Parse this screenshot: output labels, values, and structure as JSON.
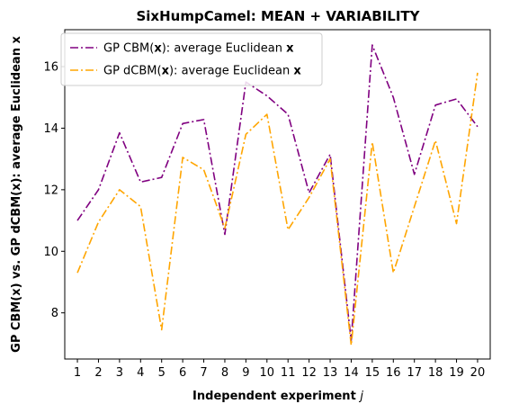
{
  "chart_data": {
    "type": "line",
    "title": "SixHumpCamel: MEAN + VARIABILITY",
    "xlabel": "Independent experiment",
    "xlabel_var": "j",
    "ylabel": "GP CBM(x) vs. GP dCBM(x): average Euclidean x",
    "x": [
      1,
      2,
      3,
      4,
      5,
      6,
      7,
      8,
      9,
      10,
      11,
      12,
      13,
      14,
      15,
      16,
      17,
      18,
      19,
      20
    ],
    "xlim": [
      0.4,
      20.6
    ],
    "ylim": [
      6.5,
      17.2
    ],
    "yticks": [
      8,
      10,
      12,
      14,
      16
    ],
    "grid": false,
    "legend_position": "upper-left",
    "series": [
      {
        "name": "GP CBM(x): average Euclidean x",
        "legend_parts": [
          "GP CBM(",
          "x",
          "): average Euclidean ",
          "x"
        ],
        "color": "#800080",
        "values": [
          11.0,
          12.0,
          13.85,
          12.25,
          12.4,
          14.15,
          14.28,
          10.55,
          15.5,
          15.05,
          14.45,
          11.9,
          13.15,
          7.1,
          16.7,
          15.0,
          12.5,
          14.75,
          14.95,
          14.05
        ]
      },
      {
        "name": "GP dCBM(x): average Euclidean x",
        "legend_parts": [
          "GP dCBM(",
          "x",
          "): average Euclidean ",
          "x"
        ],
        "color": "#ffa500",
        "values": [
          9.3,
          10.95,
          12.0,
          11.45,
          7.45,
          13.05,
          12.65,
          10.75,
          13.8,
          14.45,
          10.7,
          11.75,
          13.0,
          6.95,
          13.55,
          9.3,
          11.45,
          13.6,
          10.9,
          15.8
        ]
      }
    ]
  }
}
